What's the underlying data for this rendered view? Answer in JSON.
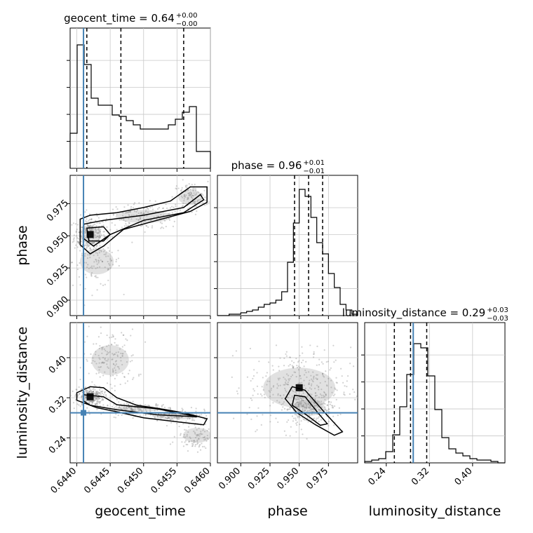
{
  "chart_data": {
    "type": "corner",
    "parameters": [
      "geocent_time",
      "phase",
      "luminosity_distance"
    ],
    "injection": {
      "geocent_time": 0.6441,
      "phase": null,
      "luminosity_distance": 0.29
    },
    "diagonals": [
      {
        "parameter": "geocent_time",
        "title_main": "geocent_time = 0.64",
        "title_plus": "+0.00",
        "title_minus": "−0.00",
        "xlim": [
          0.6439,
          0.646
        ],
        "xticks": [
          0.644,
          0.6445,
          0.645,
          0.6455,
          0.646
        ],
        "xtick_labels": [
          "0.6440",
          "0.6445",
          "0.6450",
          "0.6455",
          "0.6460"
        ],
        "axis_label": "geocent_time",
        "quantiles": [
          0.64415,
          0.64466,
          0.6456
        ],
        "hist": [
          0.25,
          0.88,
          0.74,
          0.5,
          0.45,
          0.45,
          0.38,
          0.37,
          0.34,
          0.31,
          0.28,
          0.28,
          0.28,
          0.28,
          0.31,
          0.35,
          0.4,
          0.44,
          0.12,
          0.12
        ]
      },
      {
        "parameter": "phase",
        "title_main": "phase = 0.96",
        "title_plus": "+0.01",
        "title_minus": "−0.01",
        "xlim": [
          0.88,
          1.0
        ],
        "xticks": [
          0.9,
          0.925,
          0.95,
          0.975
        ],
        "xtick_labels": [
          "0.900",
          "0.925",
          "0.950",
          "0.975"
        ],
        "axis_label": "phase",
        "quantiles": [
          0.946,
          0.958,
          0.97
        ],
        "hist": [
          0.0,
          0.0,
          0.01,
          0.01,
          0.02,
          0.03,
          0.04,
          0.06,
          0.08,
          0.09,
          0.11,
          0.17,
          0.38,
          0.66,
          0.9,
          0.85,
          0.7,
          0.52,
          0.44,
          0.3,
          0.2,
          0.08,
          0.04,
          0.01
        ]
      },
      {
        "parameter": "luminosity_distance",
        "title_main": "luminosity_distance = 0.29",
        "title_plus": "+0.03",
        "title_minus": "−0.03",
        "xlim": [
          0.2,
          0.46
        ],
        "xticks": [
          0.24,
          0.32,
          0.4
        ],
        "xtick_labels": [
          "0.24",
          "0.32",
          "0.40"
        ],
        "axis_label": "luminosity_distance",
        "quantiles": [
          0.255,
          0.285,
          0.315
        ],
        "hist": [
          0.01,
          0.02,
          0.03,
          0.08,
          0.2,
          0.4,
          0.63,
          0.85,
          0.82,
          0.62,
          0.38,
          0.18,
          0.1,
          0.07,
          0.05,
          0.03,
          0.02,
          0.02,
          0.01,
          0.0
        ]
      }
    ],
    "offdiagonals": [
      {
        "x": "geocent_time",
        "y": "phase",
        "ylim": [
          0.888,
          0.997
        ],
        "yticks": [
          0.9,
          0.925,
          0.95,
          0.975
        ],
        "ytick_labels": [
          "0.900",
          "0.925",
          "0.950",
          "0.975"
        ],
        "clusters": [
          {
            "cx": 0.6442,
            "cy": 0.951,
            "sx": 0.00012,
            "sy": 0.007,
            "n": 260
          },
          {
            "cx": 0.6443,
            "cy": 0.93,
            "sx": 0.00018,
            "sy": 0.01,
            "n": 110
          },
          {
            "cx": 0.645,
            "cy": 0.965,
            "sx": 0.0003,
            "sy": 0.005,
            "n": 160
          },
          {
            "cx": 0.6457,
            "cy": 0.98,
            "sx": 0.00013,
            "sy": 0.006,
            "n": 120
          }
        ],
        "contour_paths": [
          [
            [
              0.64405,
              0.963
            ],
            [
              0.6442,
              0.966
            ],
            [
              0.6446,
              0.968
            ],
            [
              0.645,
              0.972
            ],
            [
              0.6454,
              0.977
            ],
            [
              0.6457,
              0.988
            ],
            [
              0.64595,
              0.988
            ],
            [
              0.64595,
              0.976
            ],
            [
              0.6457,
              0.969
            ],
            [
              0.6452,
              0.962
            ],
            [
              0.6447,
              0.955
            ],
            [
              0.6444,
              0.942
            ],
            [
              0.6442,
              0.936
            ],
            [
              0.64405,
              0.943
            ]
          ],
          [
            [
              0.6441,
              0.959
            ],
            [
              0.6444,
              0.962
            ],
            [
              0.645,
              0.966
            ],
            [
              0.6456,
              0.972
            ],
            [
              0.64585,
              0.982
            ],
            [
              0.6459,
              0.978
            ],
            [
              0.6456,
              0.968
            ],
            [
              0.645,
              0.962
            ],
            [
              0.6445,
              0.951
            ],
            [
              0.64425,
              0.942
            ],
            [
              0.6441,
              0.948
            ]
          ],
          [
            [
              0.64415,
              0.956
            ],
            [
              0.6444,
              0.957
            ],
            [
              0.6445,
              0.951
            ],
            [
              0.6444,
              0.946
            ],
            [
              0.64418,
              0.946
            ]
          ]
        ]
      },
      {
        "x": "geocent_time",
        "y": "luminosity_distance",
        "ylim": [
          0.19,
          0.47
        ],
        "yticks": [
          0.24,
          0.32,
          0.4
        ],
        "ytick_labels": [
          "0.24",
          "0.32",
          "0.40"
        ],
        "clusters": [
          {
            "cx": 0.6442,
            "cy": 0.322,
            "sx": 0.0001,
            "sy": 0.01,
            "n": 230
          },
          {
            "cx": 0.6445,
            "cy": 0.395,
            "sx": 0.0002,
            "sy": 0.03,
            "n": 160
          },
          {
            "cx": 0.6449,
            "cy": 0.298,
            "sx": 0.00025,
            "sy": 0.006,
            "n": 170
          },
          {
            "cx": 0.6455,
            "cy": 0.283,
            "sx": 0.00025,
            "sy": 0.006,
            "n": 140
          },
          {
            "cx": 0.6458,
            "cy": 0.245,
            "sx": 0.00015,
            "sy": 0.015,
            "n": 110
          }
        ],
        "contour_paths": [
          [
            [
              0.644,
              0.33
            ],
            [
              0.6442,
              0.342
            ],
            [
              0.6444,
              0.34
            ],
            [
              0.6446,
              0.32
            ],
            [
              0.6449,
              0.305
            ],
            [
              0.6453,
              0.297
            ],
            [
              0.6456,
              0.29
            ],
            [
              0.64595,
              0.278
            ],
            [
              0.6459,
              0.266
            ],
            [
              0.6455,
              0.272
            ],
            [
              0.645,
              0.28
            ],
            [
              0.6446,
              0.292
            ],
            [
              0.6443,
              0.3
            ],
            [
              0.644,
              0.315
            ]
          ],
          [
            [
              0.6441,
              0.326
            ],
            [
              0.6444,
              0.322
            ],
            [
              0.6446,
              0.306
            ],
            [
              0.6452,
              0.298
            ],
            [
              0.6458,
              0.282
            ],
            [
              0.6452,
              0.286
            ],
            [
              0.6446,
              0.296
            ],
            [
              0.6442,
              0.305
            ],
            [
              0.6441,
              0.314
            ]
          ]
        ]
      },
      {
        "x": "phase",
        "y": "luminosity_distance",
        "ylim": [
          0.19,
          0.47
        ],
        "yticks": [
          0.24,
          0.32,
          0.4
        ],
        "ytick_labels": [
          "0.24",
          "0.32",
          "0.40"
        ],
        "clusters": [
          {
            "cx": 0.95,
            "cy": 0.34,
            "sx": 0.022,
            "sy": 0.04,
            "n": 340
          },
          {
            "cx": 0.958,
            "cy": 0.3,
            "sx": 0.01,
            "sy": 0.016,
            "n": 220
          }
        ],
        "contour_paths": [
          [
            [
              0.944,
              0.342
            ],
            [
              0.955,
              0.335
            ],
            [
              0.972,
              0.29
            ],
            [
              0.987,
              0.252
            ],
            [
              0.98,
              0.245
            ],
            [
              0.964,
              0.266
            ],
            [
              0.948,
              0.29
            ],
            [
              0.938,
              0.318
            ]
          ],
          [
            [
              0.946,
              0.325
            ],
            [
              0.955,
              0.322
            ],
            [
              0.966,
              0.29
            ],
            [
              0.974,
              0.268
            ],
            [
              0.968,
              0.265
            ],
            [
              0.956,
              0.286
            ],
            [
              0.944,
              0.305
            ]
          ]
        ]
      }
    ],
    "colors": {
      "truth": "#4682b4",
      "line": "#000000",
      "grid": "#c8c8c8",
      "points": "#7f7f7f"
    }
  }
}
